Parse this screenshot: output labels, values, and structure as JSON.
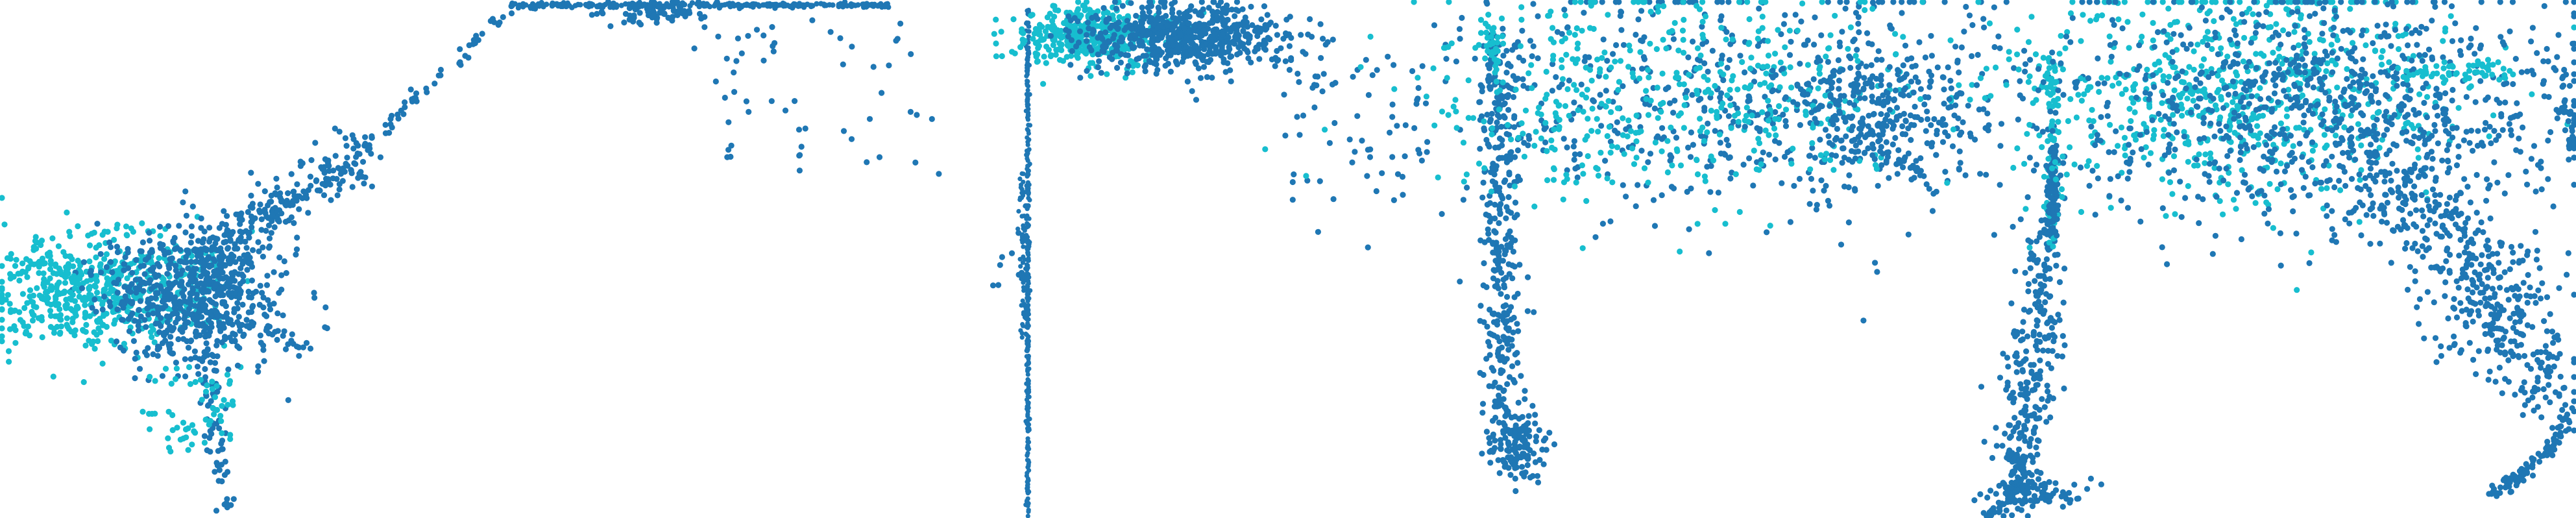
{
  "colors": {
    "series_a": "#1f77b4",
    "series_b": "#17becf",
    "axis": "#1f77b4"
  },
  "chart_data": [
    {
      "type": "scatter",
      "title": "",
      "xlabel": "",
      "ylabel": "",
      "grid": false,
      "legend": "none",
      "series": [
        {
          "color": "series_a",
          "points": []
        },
        {
          "color": "series_b",
          "points": []
        }
      ]
    },
    {
      "type": "scatter",
      "title": "",
      "xlabel": "",
      "ylabel": "",
      "grid": false,
      "legend": "none",
      "series": [
        {
          "color": "series_a",
          "points": []
        },
        {
          "color": "series_b",
          "points": []
        }
      ]
    },
    {
      "type": "scatter",
      "title": "",
      "xlabel": "",
      "ylabel": "",
      "grid": false,
      "legend": "none",
      "series": [
        {
          "color": "series_a",
          "points": []
        },
        {
          "color": "series_b",
          "points": []
        }
      ]
    },
    {
      "type": "scatter",
      "title": "",
      "xlabel": "",
      "ylabel": "",
      "grid": false,
      "legend": "none",
      "series": [
        {
          "color": "series_a",
          "points": []
        },
        {
          "color": "series_b",
          "points": []
        }
      ]
    },
    {
      "type": "scatter",
      "title": "",
      "xlabel": "",
      "ylabel": "",
      "grid": false,
      "legend": "none",
      "series": [
        {
          "color": "series_a",
          "points": []
        },
        {
          "color": "series_b",
          "points": []
        }
      ]
    },
    {
      "type": "scatter",
      "title": "",
      "xlabel": "",
      "ylabel": "",
      "grid": false,
      "legend": "none",
      "series": [
        {
          "color": "series_a",
          "points": []
        },
        {
          "color": "series_b",
          "points": []
        }
      ]
    }
  ]
}
